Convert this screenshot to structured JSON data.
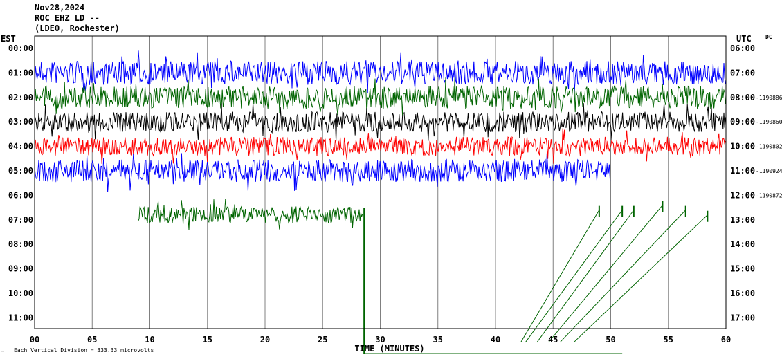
{
  "header": {
    "date": "Nov28,2024",
    "station": "ROC EHZ LD --",
    "network": "(LDEO, Rochester)"
  },
  "left_zone": "EST",
  "right_zone": "UTC",
  "right_corner": "DC",
  "xlabel": "TIME (MINUTES)",
  "footer_note": "Each Vertical Division =  333.33 microvolts",
  "footer_mark": "→",
  "colors": {
    "blue": "#0000ff",
    "green": "#006400",
    "black": "#000000",
    "red": "#ff0000",
    "grid": "#808080"
  },
  "chart_data": {
    "type": "line",
    "title": "ROC EHZ LD --",
    "xlabel": "TIME (MINUTES)",
    "ylabel": "",
    "x_ticks": [
      "00",
      "05",
      "10",
      "15",
      "20",
      "25",
      "30",
      "35",
      "40",
      "45",
      "50",
      "55",
      "60"
    ],
    "xlim": [
      0,
      60
    ],
    "left_ticks": [
      "00:00",
      "01:00",
      "02:00",
      "03:00",
      "04:00",
      "05:00",
      "06:00",
      "07:00",
      "08:00",
      "09:00",
      "10:00",
      "11:00"
    ],
    "right_ticks": [
      "06:00",
      "07:00",
      "08:00",
      "09:00",
      "10:00",
      "11:00",
      "12:00",
      "13:00",
      "14:00",
      "15:00",
      "16:00",
      "17:00"
    ],
    "row_counts": [
      "",
      "",
      "1190886",
      "1190860",
      "1190802",
      "1190924",
      "1190872",
      "",
      "",
      "",
      "",
      ""
    ],
    "grid": true,
    "traces": [
      {
        "row": 1.0,
        "color": "blue",
        "amplitude": 0.42,
        "x_start": 0,
        "x_end": 60
      },
      {
        "row": 2.0,
        "color": "green",
        "amplitude": 0.4,
        "x_start": 0,
        "x_end": 60
      },
      {
        "row": 3.0,
        "color": "black",
        "amplitude": 0.36,
        "x_start": 0,
        "x_end": 60
      },
      {
        "row": 4.0,
        "color": "red",
        "amplitude": 0.34,
        "x_start": 0,
        "x_end": 60
      },
      {
        "row": 5.0,
        "color": "blue",
        "amplitude": 0.4,
        "x_start": 0,
        "x_end": 50
      },
      {
        "row": 6.8,
        "color": "green",
        "amplitude": 0.3,
        "x_start": 9,
        "x_end": 28.5
      }
    ],
    "anomalies": [
      {
        "type": "spike",
        "color": "green",
        "x": 28.6,
        "from_row": 6.5,
        "to_row": 12.5
      }
    ],
    "connectors": [
      {
        "x1": 42.2,
        "row1": 12.0,
        "x2": 49.0,
        "row2": 6.6
      },
      {
        "x1": 42.6,
        "row1": 12.0,
        "x2": 51.0,
        "row2": 6.6
      },
      {
        "x1": 43.6,
        "row1": 12.0,
        "x2": 52.0,
        "row2": 6.6
      },
      {
        "x1": 44.6,
        "row1": 12.0,
        "x2": 54.5,
        "row2": 6.4
      },
      {
        "x1": 45.6,
        "row1": 12.0,
        "x2": 56.5,
        "row2": 6.6
      },
      {
        "x1": 46.8,
        "row1": 12.0,
        "x2": 58.4,
        "row2": 6.8
      }
    ]
  }
}
